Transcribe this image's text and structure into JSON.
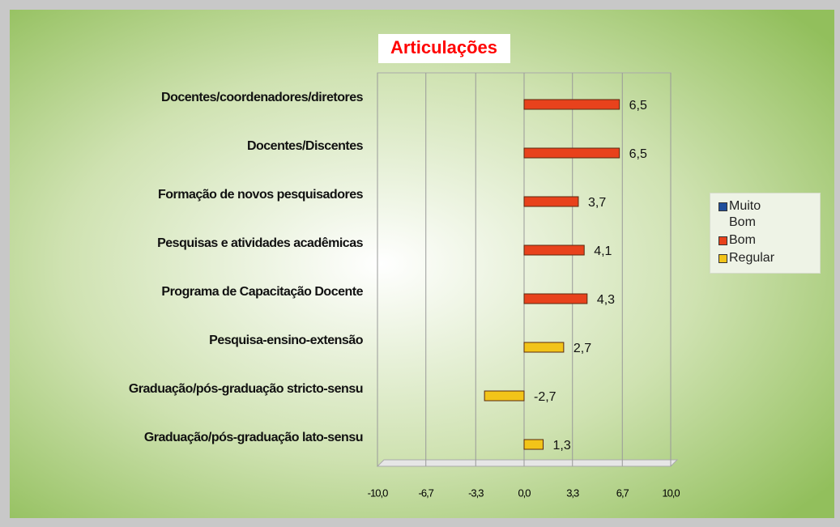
{
  "chart_data": {
    "type": "bar",
    "orientation": "horizontal",
    "title": "Articulações",
    "categories": [
      "Docentes/coordenadores/diretores",
      "Docentes/Discentes",
      "Formação de novos pesquisadores",
      "Pesquisas e atividades acadêmicas",
      "Programa de Capacitação Docente",
      "Pesquisa-ensino-extensão",
      "Graduação/pós-graduação stricto-sensu",
      "Graduação/pós-graduação lato-sensu"
    ],
    "series": [
      {
        "name": "Muito Bom",
        "color": "#1f4e9c",
        "values": [
          null,
          null,
          null,
          null,
          null,
          null,
          null,
          null
        ]
      },
      {
        "name": "Bom",
        "color": "#e8421c",
        "values": [
          6.5,
          6.5,
          3.7,
          4.1,
          4.3,
          null,
          null,
          null
        ],
        "value_labels": [
          "6,5",
          "6,5",
          "3,7",
          "4,1",
          "4,3",
          null,
          null,
          null
        ]
      },
      {
        "name": "Regular",
        "color": "#f2c419",
        "values": [
          null,
          null,
          null,
          null,
          null,
          2.7,
          -2.7,
          1.3
        ],
        "value_labels": [
          null,
          null,
          null,
          null,
          null,
          "2,7",
          "-2,7",
          "1,3"
        ]
      }
    ],
    "xlim": [
      -10,
      10
    ],
    "xticks": [
      {
        "value": -10,
        "label": "-10,0"
      },
      {
        "value": -6.7,
        "label": "-6,7"
      },
      {
        "value": -3.3,
        "label": "-3,3"
      },
      {
        "value": 0,
        "label": "0,0"
      },
      {
        "value": 3.3,
        "label": "3,3"
      },
      {
        "value": 6.7,
        "label": "6,7"
      },
      {
        "value": 10,
        "label": "10,0"
      }
    ],
    "grid": true,
    "legend": "right"
  }
}
